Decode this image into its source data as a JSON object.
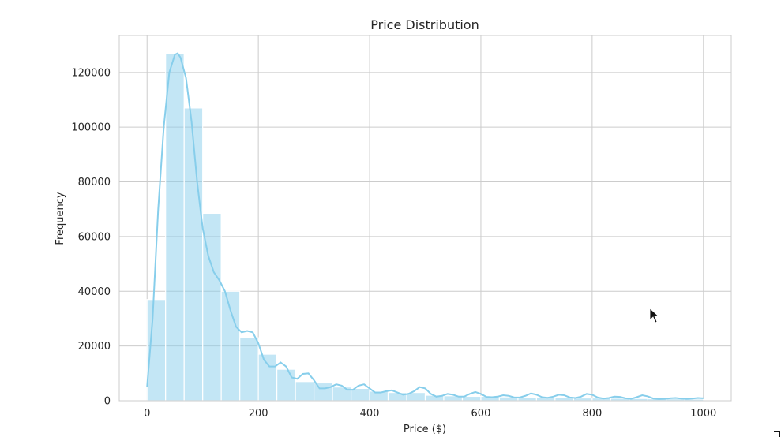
{
  "chart_data": {
    "type": "bar",
    "title": "Price Distribution",
    "xlabel": "Price ($)",
    "ylabel": "Frequency",
    "xlim": [
      -50,
      1050
    ],
    "ylim": [
      0,
      133500
    ],
    "xticks": [
      0,
      200,
      400,
      600,
      800,
      1000
    ],
    "yticks": [
      0,
      20000,
      40000,
      60000,
      80000,
      100000,
      120000
    ],
    "grid": true,
    "bar_color": "#87ceeb",
    "bar_alpha": 0.5,
    "kde_color": "#87ceeb",
    "bins": [
      {
        "x0": 0,
        "x1": 33.3,
        "count": 37000
      },
      {
        "x0": 33.3,
        "x1": 66.7,
        "count": 127000
      },
      {
        "x0": 66.7,
        "x1": 100,
        "count": 107000
      },
      {
        "x0": 100,
        "x1": 133.3,
        "count": 68500
      },
      {
        "x0": 133.3,
        "x1": 166.7,
        "count": 40000
      },
      {
        "x0": 166.7,
        "x1": 200,
        "count": 23000
      },
      {
        "x0": 200,
        "x1": 233.3,
        "count": 17000
      },
      {
        "x0": 233.3,
        "x1": 266.7,
        "count": 11500
      },
      {
        "x0": 266.7,
        "x1": 300,
        "count": 7000
      },
      {
        "x0": 300,
        "x1": 333.3,
        "count": 6500
      },
      {
        "x0": 333.3,
        "x1": 366.7,
        "count": 5000
      },
      {
        "x0": 366.7,
        "x1": 400,
        "count": 4500
      },
      {
        "x0": 400,
        "x1": 433.3,
        "count": 3500
      },
      {
        "x0": 433.3,
        "x1": 466.7,
        "count": 3000
      },
      {
        "x0": 466.7,
        "x1": 500,
        "count": 3000
      },
      {
        "x0": 500,
        "x1": 533.3,
        "count": 2000
      },
      {
        "x0": 533.3,
        "x1": 566.7,
        "count": 1800
      },
      {
        "x0": 566.7,
        "x1": 600,
        "count": 1600
      },
      {
        "x0": 600,
        "x1": 633.3,
        "count": 1600
      },
      {
        "x0": 633.3,
        "x1": 666.7,
        "count": 1400
      },
      {
        "x0": 666.7,
        "x1": 700,
        "count": 1200
      },
      {
        "x0": 700,
        "x1": 733.3,
        "count": 1200
      },
      {
        "x0": 733.3,
        "x1": 766.7,
        "count": 1100
      },
      {
        "x0": 766.7,
        "x1": 800,
        "count": 1000
      },
      {
        "x0": 800,
        "x1": 833.3,
        "count": 1000
      },
      {
        "x0": 833.3,
        "x1": 866.7,
        "count": 900
      },
      {
        "x0": 866.7,
        "x1": 900,
        "count": 800
      },
      {
        "x0": 900,
        "x1": 933.3,
        "count": 700
      },
      {
        "x0": 933.3,
        "x1": 966.7,
        "count": 700
      },
      {
        "x0": 966.7,
        "x1": 1000,
        "count": 600
      }
    ],
    "kde": {
      "x": [
        0,
        10,
        20,
        30,
        40,
        50,
        55,
        60,
        70,
        80,
        90,
        100,
        110,
        120,
        130,
        140,
        150,
        160,
        170,
        180,
        190,
        200,
        210,
        220,
        230,
        240,
        250,
        260,
        270,
        280,
        290,
        300,
        310,
        320,
        330,
        340,
        350,
        360,
        370,
        380,
        390,
        400,
        410,
        420,
        430,
        440,
        450,
        460,
        470,
        480,
        490,
        500,
        510,
        520,
        530,
        540,
        550,
        560,
        570,
        580,
        590,
        600,
        610,
        620,
        630,
        640,
        650,
        660,
        670,
        680,
        690,
        700,
        710,
        720,
        730,
        740,
        750,
        760,
        770,
        780,
        790,
        800,
        810,
        820,
        830,
        840,
        850,
        860,
        870,
        880,
        890,
        900,
        910,
        920,
        930,
        940,
        950,
        960,
        970,
        980,
        990,
        1000
      ],
      "y": [
        5000,
        30000,
        70000,
        100000,
        120000,
        126500,
        127000,
        125500,
        118000,
        102000,
        80000,
        63000,
        53000,
        47000,
        44000,
        40000,
        33000,
        27000,
        25000,
        25500,
        25000,
        21000,
        15000,
        12500,
        12500,
        14000,
        12500,
        8500,
        8000,
        9800,
        10000,
        7500,
        4500,
        4500,
        5000,
        6000,
        5500,
        4000,
        4000,
        5500,
        6000,
        4500,
        3000,
        3000,
        3500,
        3800,
        3000,
        2200,
        2500,
        3500,
        5000,
        4500,
        2500,
        1500,
        1800,
        2500,
        2200,
        1500,
        1500,
        2500,
        3200,
        2500,
        1400,
        1300,
        1500,
        2000,
        1800,
        1200,
        1200,
        1800,
        2700,
        2200,
        1300,
        1100,
        1500,
        2200,
        2000,
        1200,
        1000,
        1500,
        2500,
        2200,
        1200,
        800,
        1000,
        1500,
        1400,
        900,
        700,
        1300,
        2000,
        1600,
        800,
        600,
        700,
        900,
        1000,
        800,
        700,
        800,
        1000,
        900
      ]
    }
  },
  "cursor": {
    "label": "mouse-pointer"
  }
}
